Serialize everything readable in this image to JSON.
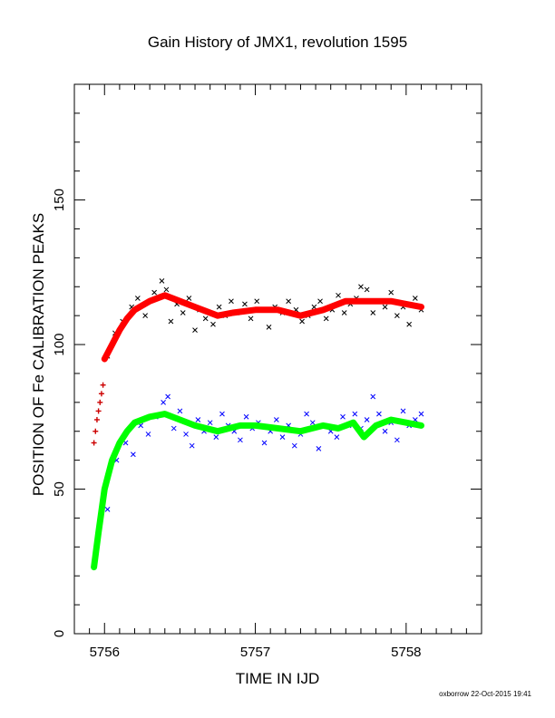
{
  "chart_data": {
    "type": "scatter",
    "title": "Gain History of JMX1, revolution 1595",
    "xlabel": "TIME IN IJD",
    "ylabel": "POSITION OF Fe CALIBRATION PEAKS",
    "xlim": [
      5755.8,
      5758.5
    ],
    "ylim": [
      0,
      190
    ],
    "x_ticks": [
      5756,
      5757,
      5758
    ],
    "y_ticks": [
      0,
      50,
      100,
      150
    ],
    "grid": false,
    "credit": "oxborrow 22-Oct-2015 19:41",
    "colors": {
      "upper_points": "#000000",
      "upper_fit": "#ff0000",
      "upper_early": "#cc0000",
      "lower_points": "#0000ff",
      "lower_fit": "#00ff00"
    },
    "series": [
      {
        "role": "upper-early",
        "x": [
          5755.93,
          5755.94,
          5755.95,
          5755.96,
          5755.97,
          5755.98,
          5755.99
        ],
        "y": [
          66,
          70,
          74,
          77,
          80,
          83,
          86
        ]
      },
      {
        "role": "upper-fit",
        "x": [
          5756.0,
          5756.05,
          5756.1,
          5756.15,
          5756.2,
          5756.3,
          5756.4,
          5756.5,
          5756.6,
          5756.75,
          5756.85,
          5757.0,
          5757.15,
          5757.3,
          5757.45,
          5757.6,
          5757.75,
          5757.9,
          5758.0,
          5758.1
        ],
        "y": [
          95,
          100,
          105,
          109,
          112,
          115,
          117,
          115,
          113,
          110,
          111,
          112,
          112,
          110,
          112,
          115,
          115,
          115,
          114,
          113
        ]
      },
      {
        "role": "upper-points",
        "x": [
          5756.02,
          5756.07,
          5756.12,
          5756.18,
          5756.22,
          5756.27,
          5756.33,
          5756.38,
          5756.41,
          5756.44,
          5756.48,
          5756.52,
          5756.56,
          5756.6,
          5756.63,
          5756.67,
          5756.72,
          5756.76,
          5756.8,
          5756.84,
          5756.88,
          5756.93,
          5756.97,
          5757.01,
          5757.05,
          5757.09,
          5757.13,
          5757.18,
          5757.22,
          5757.27,
          5757.31,
          5757.35,
          5757.39,
          5757.43,
          5757.47,
          5757.51,
          5757.55,
          5757.59,
          5757.63,
          5757.67,
          5757.7,
          5757.74,
          5757.78,
          5757.82,
          5757.86,
          5757.9,
          5757.94,
          5757.98,
          5758.02,
          5758.06,
          5758.1
        ],
        "y": [
          96,
          104,
          108,
          113,
          116,
          110,
          118,
          122,
          119,
          108,
          114,
          111,
          116,
          105,
          112,
          109,
          107,
          113,
          110,
          115,
          111,
          114,
          109,
          115,
          112,
          106,
          113,
          111,
          115,
          112,
          108,
          110,
          113,
          115,
          109,
          112,
          117,
          111,
          114,
          116,
          120,
          119,
          111,
          115,
          113,
          118,
          110,
          113,
          107,
          116,
          112
        ]
      },
      {
        "role": "lower-fit",
        "x": [
          5755.93,
          5755.96,
          5756.0,
          5756.05,
          5756.1,
          5756.15,
          5756.2,
          5756.3,
          5756.4,
          5756.5,
          5756.6,
          5756.75,
          5756.9,
          5757.0,
          5757.15,
          5757.3,
          5757.45,
          5757.55,
          5757.65,
          5757.72,
          5757.8,
          5757.9,
          5758.0,
          5758.1
        ],
        "y": [
          23,
          35,
          50,
          60,
          66,
          70,
          73,
          75,
          76,
          74,
          72,
          70,
          72,
          72,
          71,
          70,
          72,
          71,
          73,
          68,
          72,
          74,
          73,
          72
        ]
      },
      {
        "role": "lower-points",
        "x": [
          5756.02,
          5756.08,
          5756.14,
          5756.19,
          5756.24,
          5756.29,
          5756.34,
          5756.39,
          5756.42,
          5756.46,
          5756.5,
          5756.54,
          5756.58,
          5756.62,
          5756.66,
          5756.7,
          5756.74,
          5756.78,
          5756.82,
          5756.86,
          5756.9,
          5756.94,
          5756.98,
          5757.02,
          5757.06,
          5757.1,
          5757.14,
          5757.18,
          5757.22,
          5757.26,
          5757.3,
          5757.34,
          5757.38,
          5757.42,
          5757.46,
          5757.5,
          5757.54,
          5757.58,
          5757.62,
          5757.66,
          5757.7,
          5757.74,
          5757.78,
          5757.82,
          5757.86,
          5757.9,
          5757.94,
          5757.98,
          5758.02,
          5758.06,
          5758.1
        ],
        "y": [
          43,
          60,
          66,
          62,
          72,
          69,
          75,
          80,
          82,
          71,
          77,
          69,
          65,
          74,
          70,
          73,
          68,
          76,
          72,
          70,
          67,
          75,
          71,
          73,
          66,
          70,
          74,
          68,
          72,
          65,
          69,
          76,
          73,
          64,
          72,
          70,
          68,
          75,
          72,
          76,
          71,
          74,
          82,
          76,
          70,
          73,
          67,
          77,
          72,
          74,
          76
        ]
      }
    ]
  }
}
